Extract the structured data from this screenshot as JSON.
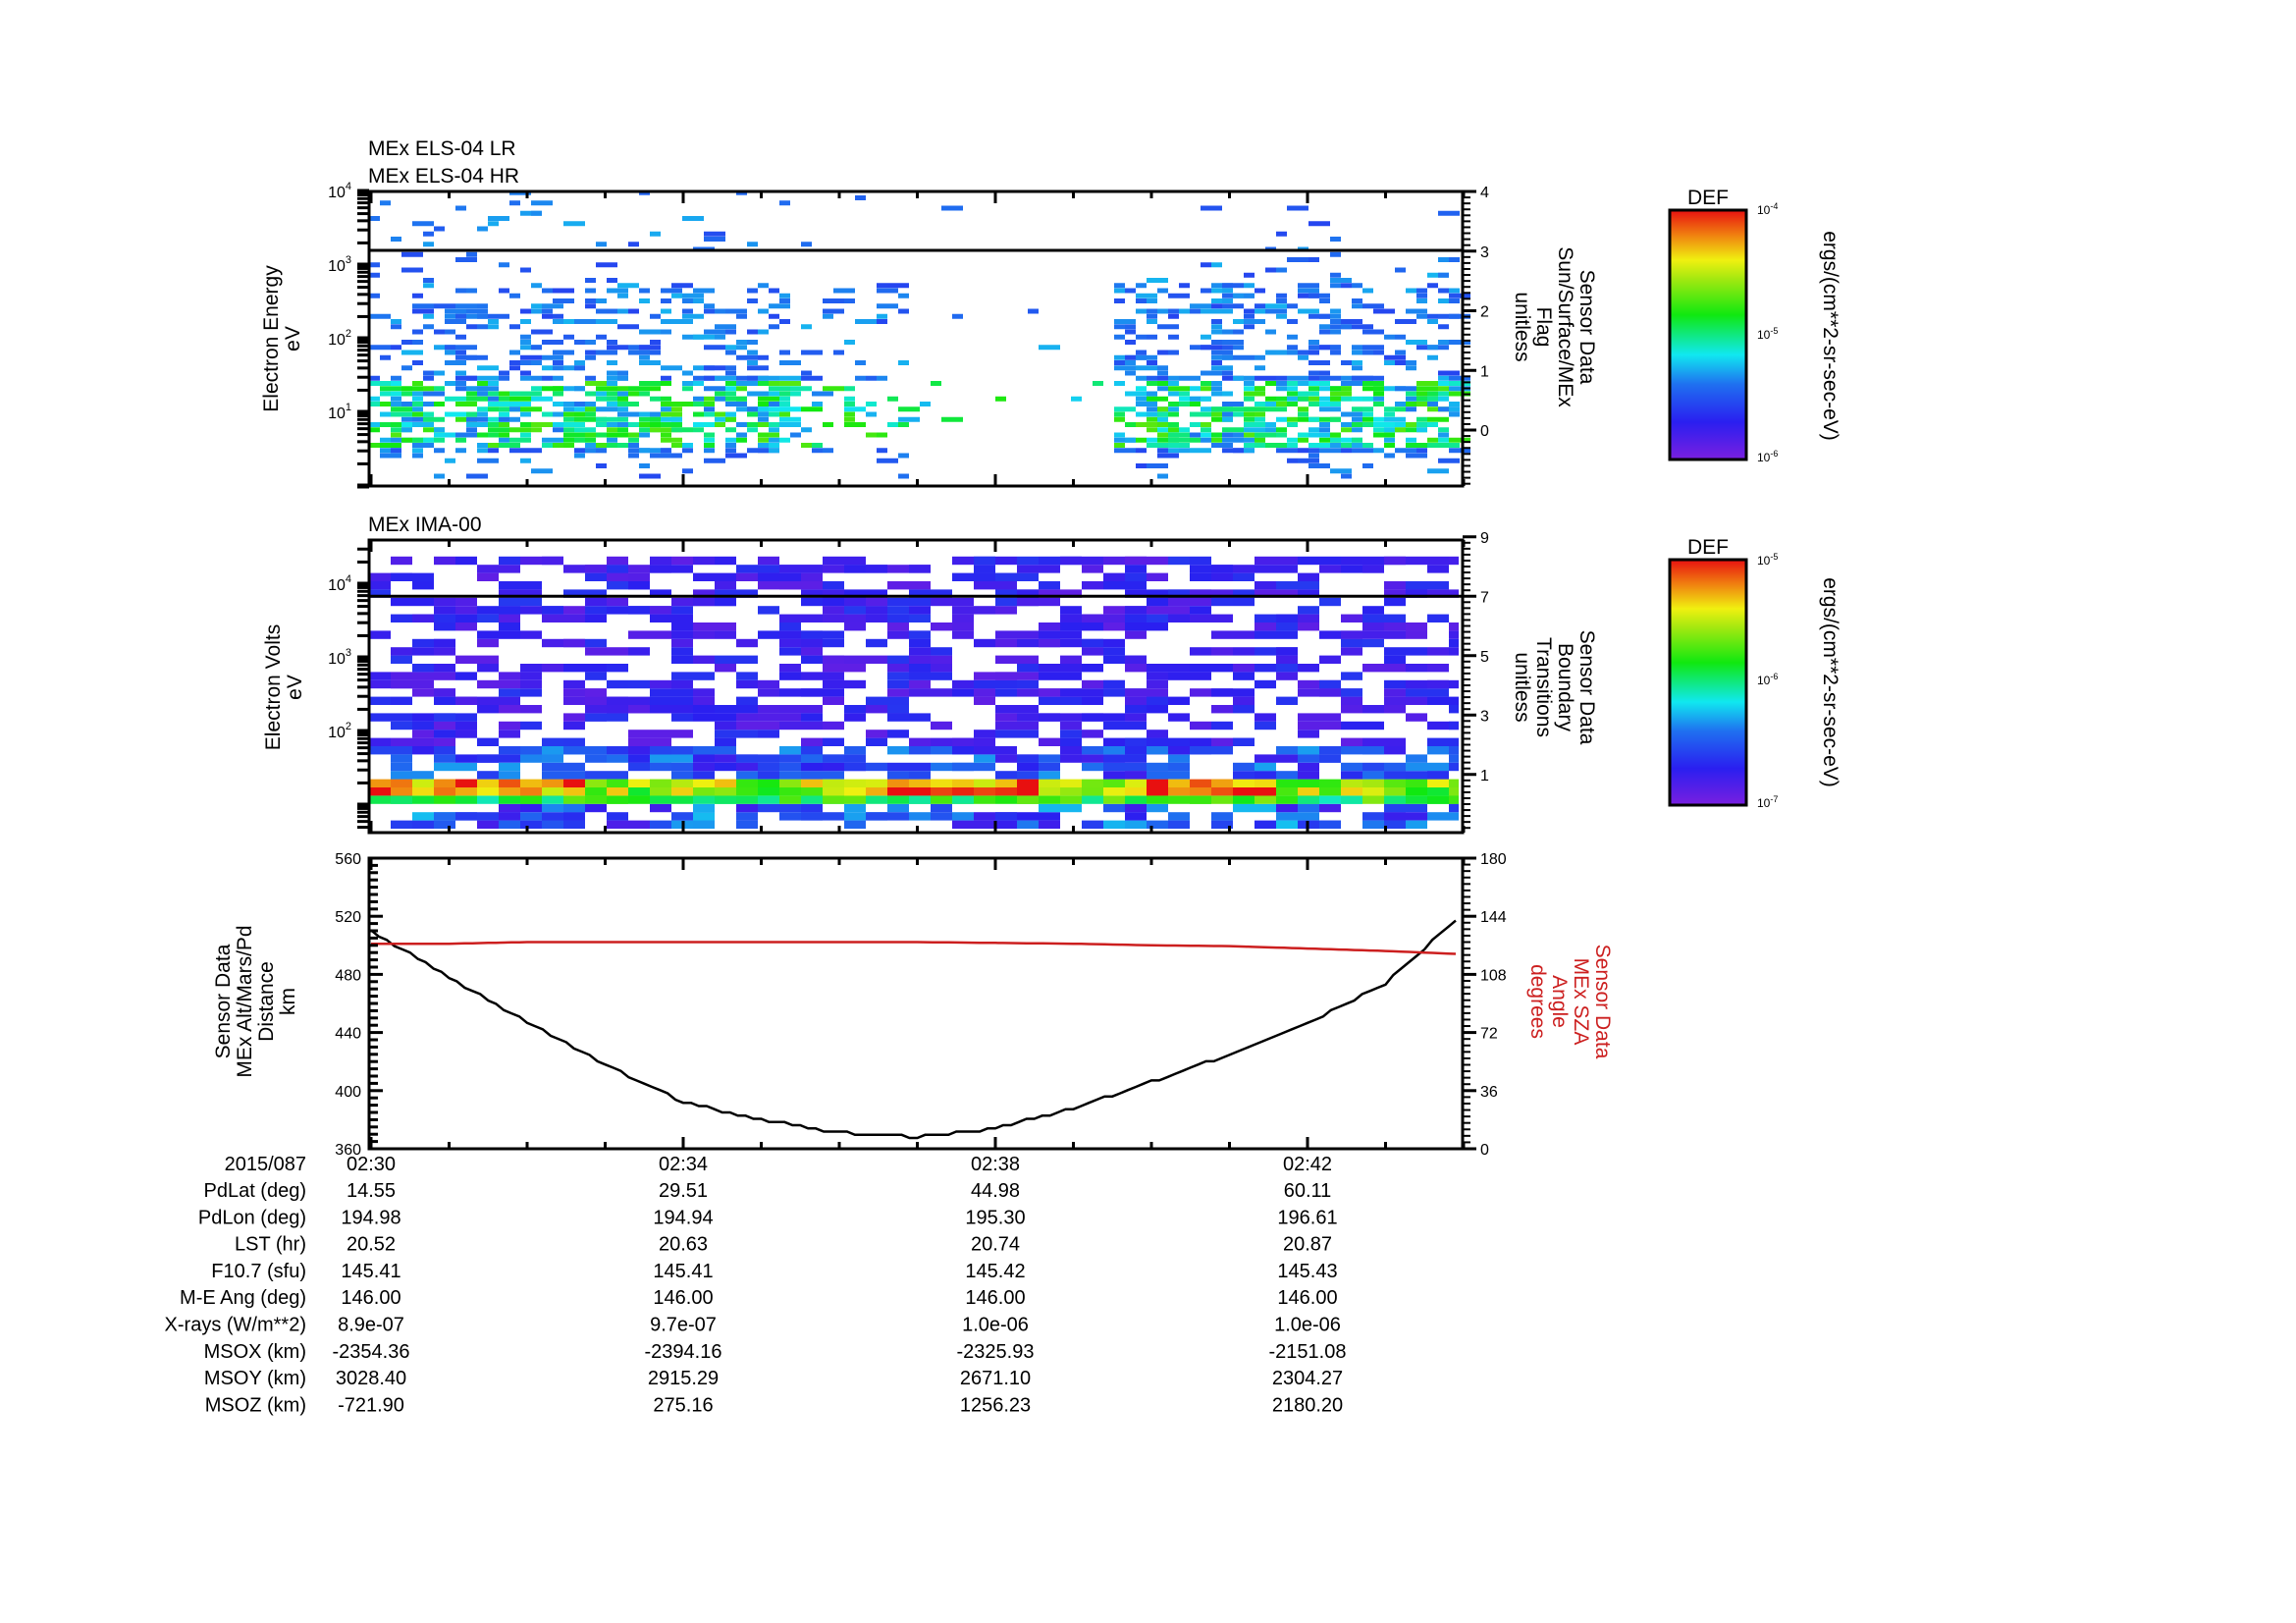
{
  "panel_titles": {
    "els_lr": "MEx ELS-04 LR",
    "els_hr": "MEx ELS-04 HR",
    "ima": "MEx IMA-00"
  },
  "colors": {
    "axis": "#000000",
    "sza_line": "#cc1f1f",
    "altitude_line": "#000000"
  },
  "chart_data": [
    {
      "type": "heatmap",
      "id": "els",
      "ylabel": [
        "Electron Energy",
        "eV"
      ],
      "yscale": "log",
      "ylim_log10": [
        0,
        4
      ],
      "yticks": [
        {
          "base": "10",
          "exp": "4",
          "v": 4
        },
        {
          "base": "10",
          "exp": "3",
          "v": 3
        },
        {
          "base": "10",
          "exp": "2",
          "v": 2
        },
        {
          "base": "10",
          "exp": "1",
          "v": 1
        }
      ],
      "y2label": [
        "Sensor Data",
        "Sun/Surface/MEx",
        "Flag",
        "unitless"
      ],
      "y2lim": [
        -0.94,
        4
      ],
      "y2ticks": [
        "0",
        "1",
        "2",
        "3",
        "4"
      ],
      "overlay_line": {
        "name": "Sun/Surface/MEx Flag",
        "value": 3
      },
      "activity_gaps_minutes": [
        [
          6.8,
          9.5
        ]
      ],
      "colorbar": {
        "title": "DEF",
        "ticks": [
          {
            "base": "10",
            "exp": "-4"
          },
          {
            "base": "10",
            "exp": "-5"
          },
          {
            "base": "10",
            "exp": "-6"
          }
        ],
        "units": "ergs/(cm**2-sr-sec-eV)"
      }
    },
    {
      "type": "heatmap",
      "id": "ima",
      "ylabel": [
        "Electron Volts",
        "eV"
      ],
      "yscale": "log",
      "ylim_log10": [
        0.63,
        4.6
      ],
      "yticks": [
        {
          "base": "10",
          "exp": "4",
          "v": 4
        },
        {
          "base": "10",
          "exp": "3",
          "v": 3
        },
        {
          "base": "10",
          "exp": "2",
          "v": 2
        }
      ],
      "y2label": [
        "Sensor Data",
        "Boundary",
        "Transitions",
        "unitless"
      ],
      "y2lim": [
        -0.9,
        9
      ],
      "y2ticks": [
        "1",
        "3",
        "5",
        "7",
        "9"
      ],
      "overlay_line": {
        "name": "Boundary Transitions",
        "value": 7
      },
      "intense_band_log10": [
        0.95,
        1.35
      ],
      "colorbar": {
        "title": "DEF",
        "ticks": [
          {
            "base": "10",
            "exp": "-5"
          },
          {
            "base": "10",
            "exp": "-6"
          },
          {
            "base": "10",
            "exp": "-7"
          }
        ],
        "units": "ergs/(cm**2-sr-sec-eV)"
      }
    },
    {
      "type": "line",
      "id": "orbit",
      "ylabel": [
        "Sensor Data",
        "MEx Alt/Mars/Pd",
        "Distance",
        "km"
      ],
      "ylim": [
        360,
        560
      ],
      "yticks": [
        "360",
        "400",
        "440",
        "480",
        "520",
        "560"
      ],
      "y2label": [
        "Sensor Data",
        "MEx SZA",
        "Angle",
        "degrees"
      ],
      "y2lim": [
        0,
        180
      ],
      "y2ticks": [
        "0",
        "36",
        "72",
        "108",
        "144",
        "180"
      ],
      "x_minutes_after_0230": [
        0,
        1,
        2,
        3,
        4,
        5,
        6,
        7,
        8,
        9,
        10,
        11,
        12,
        13,
        14
      ],
      "series": [
        {
          "name": "MEx Alt/Mars/Pd Distance (km)",
          "axis": "left",
          "values": [
            510,
            478,
            447,
            418,
            392,
            380,
            371,
            368,
            374,
            388,
            406,
            425,
            446,
            474,
            522
          ]
        },
        {
          "name": "MEx SZA Angle (degrees)",
          "axis": "right",
          "values": [
            127,
            127,
            128,
            128,
            128,
            128,
            128,
            128,
            127.5,
            127,
            126,
            125.5,
            124,
            122.5,
            120.5
          ]
        }
      ]
    }
  ],
  "time_axis": {
    "date": "2015/087",
    "ticks": [
      {
        "label": "02:30",
        "min": 0
      },
      {
        "label": "02:34",
        "min": 4
      },
      {
        "label": "02:38",
        "min": 8
      },
      {
        "label": "02:42",
        "min": 12
      }
    ],
    "range_minutes": [
      0,
      14
    ]
  },
  "ephemeris": {
    "rows": [
      {
        "label": "PdLat (deg)",
        "values": [
          "14.55",
          "29.51",
          "44.98",
          "60.11"
        ]
      },
      {
        "label": "PdLon (deg)",
        "values": [
          "194.98",
          "194.94",
          "195.30",
          "196.61"
        ]
      },
      {
        "label": "LST (hr)",
        "values": [
          "20.52",
          "20.63",
          "20.74",
          "20.87"
        ]
      },
      {
        "label": "F10.7 (sfu)",
        "values": [
          "145.41",
          "145.41",
          "145.42",
          "145.43"
        ]
      },
      {
        "label": "M-E Ang (deg)",
        "values": [
          "146.00",
          "146.00",
          "146.00",
          "146.00"
        ]
      },
      {
        "label": "X-rays (W/m**2)",
        "values": [
          "8.9e-07",
          "9.7e-07",
          "1.0e-06",
          "1.0e-06"
        ]
      },
      {
        "label": "MSOX (km)",
        "values": [
          "-2354.36",
          "-2394.16",
          "-2325.93",
          "-2151.08"
        ]
      },
      {
        "label": "MSOY (km)",
        "values": [
          "3028.40",
          "2915.29",
          "2671.10",
          "2304.27"
        ]
      },
      {
        "label": "MSOZ (km)",
        "values": [
          "-721.90",
          "275.16",
          "1256.23",
          "2180.20"
        ]
      }
    ]
  }
}
